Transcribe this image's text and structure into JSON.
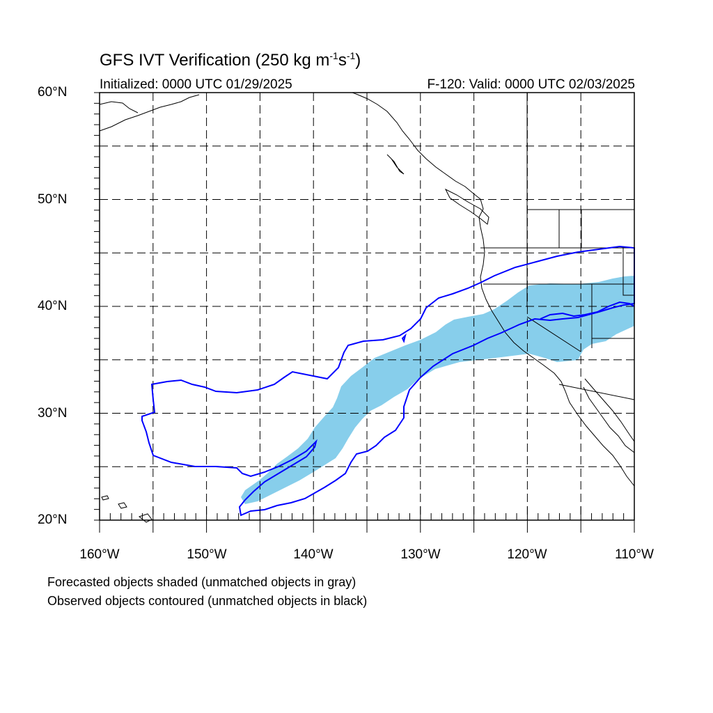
{
  "title_main": "GFS IVT Verification (250 kg m",
  "title_sup1": "-1",
  "title_mid": "s",
  "title_sup2": "-1",
  "title_end": ")",
  "initialized": "Initialized: 0000 UTC 01/29/2025",
  "valid": "F-120: Valid: 0000 UTC 02/03/2025",
  "lat_labels": [
    "60°N",
    "50°N",
    "40°N",
    "30°N",
    "20°N"
  ],
  "lon_labels": [
    "160°W",
    "150°W",
    "140°W",
    "130°W",
    "120°W",
    "110°W"
  ],
  "notes": {
    "forecast": "Forecasted objects shaded (unmatched objects in gray)",
    "observed": "Observed objects contoured (unmatched objects in black)"
  },
  "map": {
    "lat_range": [
      20,
      60
    ],
    "lon_range": [
      -160,
      -110
    ],
    "colors": {
      "forecast_fill": "#87ceeb",
      "observed_contour": "#0000ff",
      "coast": "#000000",
      "grid": "#000000"
    }
  }
}
